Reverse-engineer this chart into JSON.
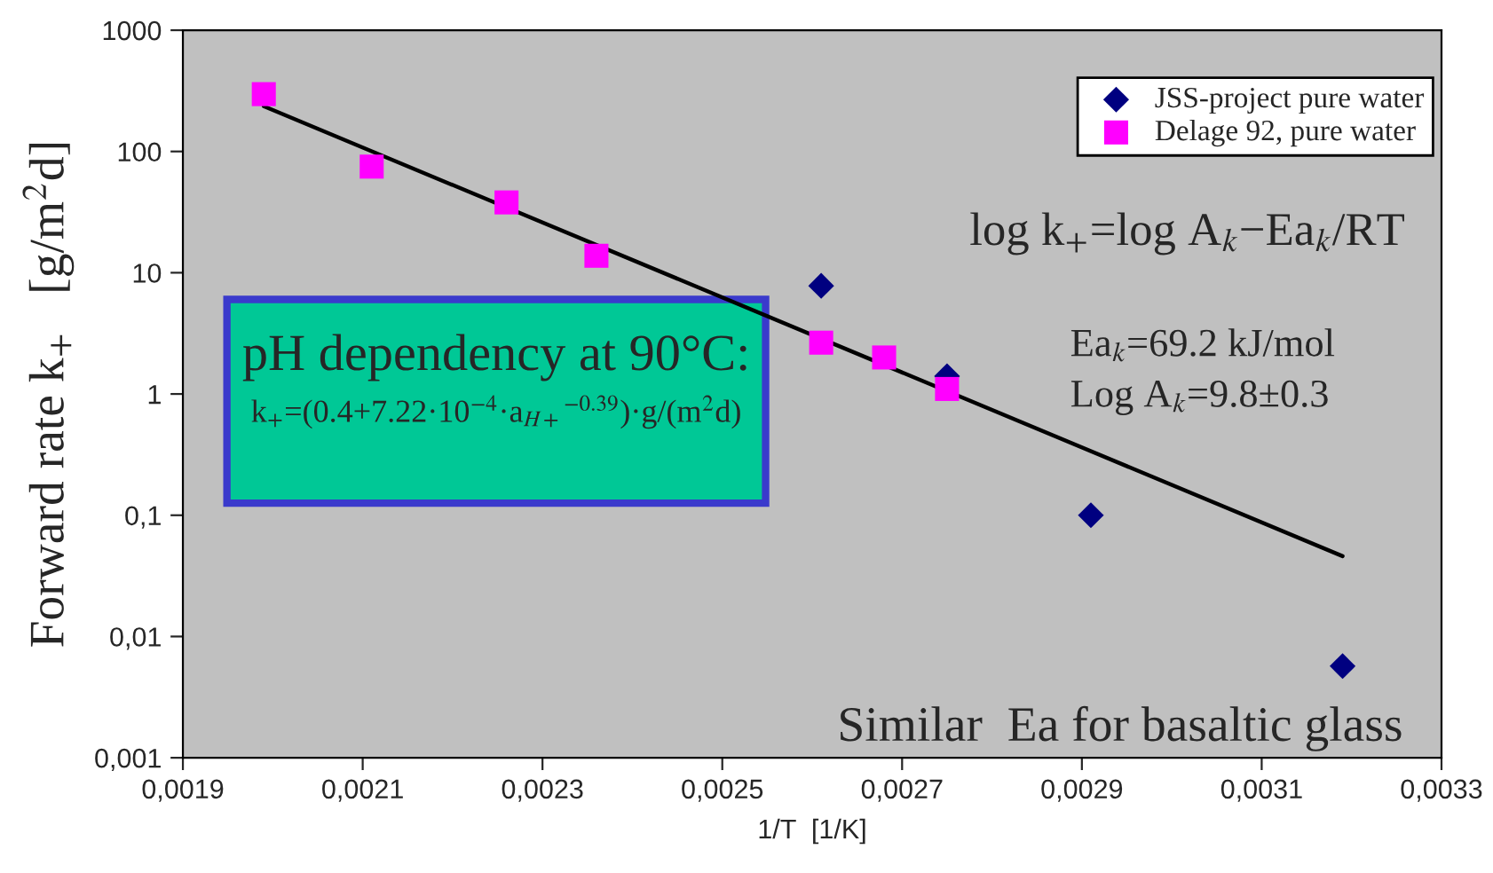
{
  "chart_data": {
    "type": "scatter",
    "xlabel": "1/T  [1/K]",
    "ylabel": "Forward rate k$_{+}$   [g/m$^{2}$d]",
    "log": "y",
    "grid": false,
    "legend": "top right",
    "xlim": [
      0.0019,
      0.0033
    ],
    "ylim": [
      0.001,
      1000
    ],
    "xticks": [
      {
        "value": 0.0019,
        "label": "0,0019"
      },
      {
        "value": 0.0021,
        "label": "0,0021"
      },
      {
        "value": 0.0023,
        "label": "0,0023"
      },
      {
        "value": 0.0025,
        "label": "0,0025"
      },
      {
        "value": 0.0027,
        "label": "0,0027"
      },
      {
        "value": 0.0029,
        "label": "0,0029"
      },
      {
        "value": 0.0031,
        "label": "0,0031"
      },
      {
        "value": 0.0033,
        "label": "0,0033"
      }
    ],
    "yticks": [
      {
        "value": 0.001,
        "label": "0,001"
      },
      {
        "value": 0.01,
        "label": "0,01"
      },
      {
        "value": 0.1,
        "label": "0,1"
      },
      1,
      10,
      100,
      1000
    ],
    "series": [
      {
        "name": "JSS-project pure water",
        "marker": "diamond",
        "color": "#000080",
        "x": [
          0.00261,
          0.00275,
          0.00291,
          0.00319
        ],
        "values": [
          7.8,
          1.4,
          0.1,
          0.0057
        ]
      },
      {
        "name": "Delage 92, pure water",
        "marker": "square",
        "color": "#ff00ff",
        "x": [
          0.00199,
          0.00211,
          0.00226,
          0.00236,
          0.00261,
          0.00268,
          0.00275
        ],
        "values": [
          297,
          75,
          38,
          13.8,
          2.65,
          2.0,
          1.1
        ]
      },
      {
        "type": "line",
        "marker": "none",
        "line_style": "solid",
        "color": "#000000",
        "x": [
          0.00199,
          0.00319
        ],
        "values": [
          236,
          0.046
        ]
      }
    ],
    "annotations": [
      "pH dependency at 90°C:",
      "k$_{+}$=(0.4+7.22·10$^{−4}$·a$_{H+}$$^{−0.39}$)·g/(m$^{2}$d)",
      "log k$_{+}$=log A$_{k}$−Ea$_{k}$/RT",
      "Ea$_{k}$=69.2 kJ/mol",
      "Log A$_{k}$=9.8±0.3",
      "Similar  Ea for basaltic glass"
    ]
  }
}
